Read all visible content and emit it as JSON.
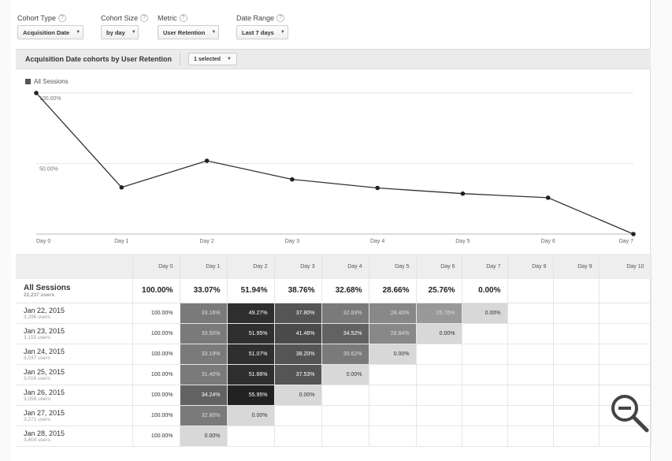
{
  "controls": [
    {
      "label": "Cohort Type",
      "value": "Acquisition Date"
    },
    {
      "label": "Cohort Size",
      "value": "by day"
    },
    {
      "label": "Metric",
      "value": "User Retention"
    },
    {
      "label": "Date Range",
      "value": "Last 7 days"
    }
  ],
  "help_glyph": "?",
  "chart_header": {
    "title": "Acquisition Date cohorts by User Retention",
    "selector": "1 selected"
  },
  "legend": {
    "label": "All Sessions"
  },
  "chart_data": {
    "type": "line",
    "x": [
      "Day 0",
      "Day 1",
      "Day 2",
      "Day 3",
      "Day 4",
      "Day 5",
      "Day 6",
      "Day 7"
    ],
    "series": [
      {
        "name": "All Sessions",
        "values": [
          100.0,
          33.07,
          51.94,
          38.76,
          32.68,
          28.66,
          25.76,
          0.0
        ]
      }
    ],
    "y_ticks": [
      {
        "value": 100,
        "label": "100.00%"
      },
      {
        "value": 50,
        "label": "50.00%"
      }
    ],
    "ylim": [
      0,
      100
    ],
    "grid": true
  },
  "table": {
    "headers": [
      "Day 0",
      "Day 1",
      "Day 2",
      "Day 3",
      "Day 4",
      "Day 5",
      "Day 6",
      "Day 7",
      "Day 8",
      "Day 9",
      "Day 10"
    ],
    "total": {
      "label": "All Sessions",
      "users": "22,237 users",
      "values": [
        "100.00%",
        "33.07%",
        "51.94%",
        "38.76%",
        "32.68%",
        "28.66%",
        "25.76%",
        "0.00%"
      ]
    },
    "rows": [
      {
        "date": "Jan 22, 2015",
        "users": "3,296 users",
        "values": [
          "100.00%",
          "33.16%",
          "49.27%",
          "37.80%",
          "32.83%",
          "28.40%",
          "25.76%",
          "0.00%"
        ]
      },
      {
        "date": "Jan 23, 2015",
        "users": "3,155 users",
        "values": [
          "100.00%",
          "33.50%",
          "51.95%",
          "41.46%",
          "34.52%",
          "28.84%",
          "0.00%"
        ]
      },
      {
        "date": "Jan 24, 2015",
        "users": "3,037 users",
        "values": [
          "100.00%",
          "33.19%",
          "51.07%",
          "38.20%",
          "30.62%",
          "0.00%"
        ]
      },
      {
        "date": "Jan 25, 2015",
        "users": "3,016 users",
        "values": [
          "100.00%",
          "31.40%",
          "51.66%",
          "37.53%",
          "0.00%"
        ]
      },
      {
        "date": "Jan 26, 2015",
        "users": "3,058 users",
        "values": [
          "100.00%",
          "34.24%",
          "55.95%",
          "0.00%"
        ]
      },
      {
        "date": "Jan 27, 2015",
        "users": "3,271 users",
        "values": [
          "100.00%",
          "32.80%",
          "0.00%"
        ]
      },
      {
        "date": "Jan 28, 2015",
        "users": "3,404 users",
        "values": [
          "100.00%",
          "0.00%"
        ]
      }
    ]
  },
  "colors": {
    "line": "#333333",
    "grid": "#e6e6e6",
    "header_bg": "#ebebeb"
  },
  "icons": {
    "zoom": "zoom-out-magnifier-icon"
  }
}
